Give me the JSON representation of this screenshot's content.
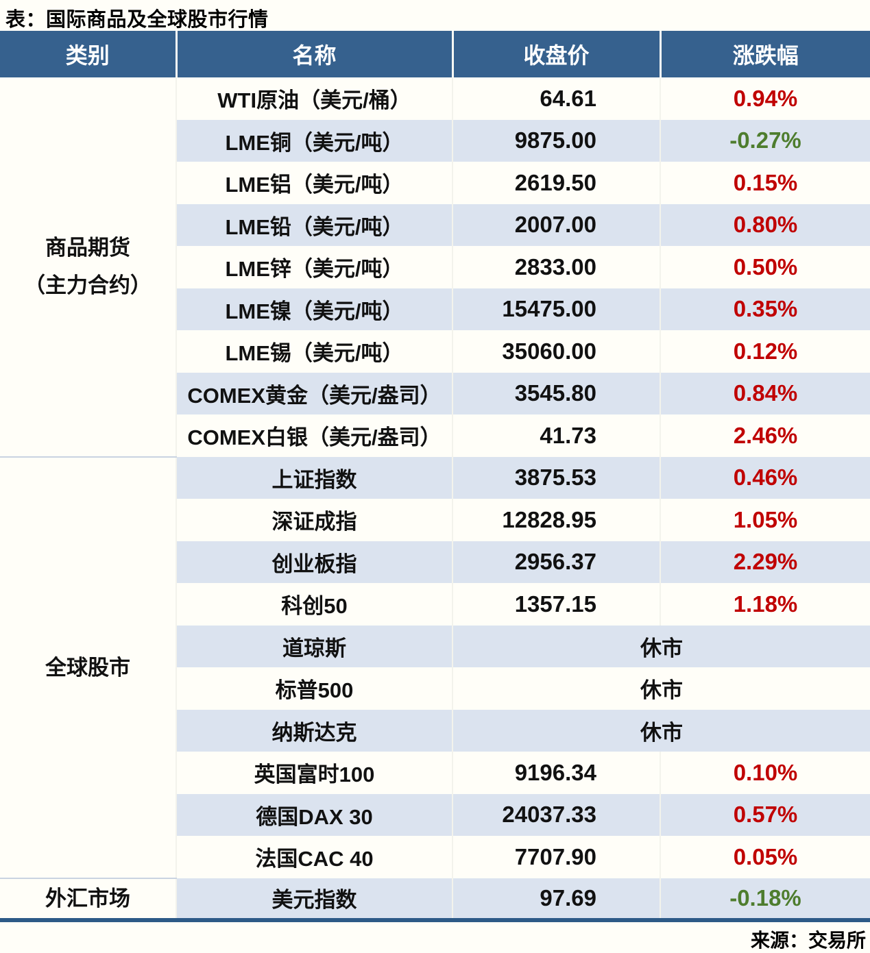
{
  "colors": {
    "header-bg": "#36618e",
    "row-bg": "#fffef8",
    "row-alt": "#dbe3ef",
    "up": "#c00000",
    "down": "#4e7d2e",
    "accent": "#2d5a87"
  },
  "chart_data": {
    "type": "table",
    "title": "表：国际商品及全球股市行情",
    "source": "来源：交易所",
    "columns": [
      "类别",
      "名称",
      "收盘价",
      "涨跌幅"
    ],
    "categories": [
      {
        "label": "商品期货（主力合约）",
        "lines": [
          "商品期货",
          "（主力合约）"
        ],
        "rowspan": 9
      },
      {
        "label": "全球股市",
        "lines": [
          "全球股市"
        ],
        "rowspan": 10
      },
      {
        "label": "外汇市场",
        "lines": [
          "外汇市场"
        ],
        "rowspan": 1
      }
    ],
    "rows": [
      {
        "name": "WTI原油（美元/桶）",
        "close": "64.61",
        "change": "0.94%",
        "direction": "up"
      },
      {
        "name": "LME铜（美元/吨）",
        "close": "9875.00",
        "change": "-0.27%",
        "direction": "down"
      },
      {
        "name": "LME铝（美元/吨）",
        "close": "2619.50",
        "change": "0.15%",
        "direction": "up"
      },
      {
        "name": "LME铅（美元/吨）",
        "close": "2007.00",
        "change": "0.80%",
        "direction": "up"
      },
      {
        "name": "LME锌（美元/吨）",
        "close": "2833.00",
        "change": "0.50%",
        "direction": "up"
      },
      {
        "name": "LME镍（美元/吨）",
        "close": "15475.00",
        "change": "0.35%",
        "direction": "up"
      },
      {
        "name": "LME锡（美元/吨）",
        "close": "35060.00",
        "change": "0.12%",
        "direction": "up"
      },
      {
        "name": "COMEX黄金（美元/盎司）",
        "close": "3545.80",
        "change": "0.84%",
        "direction": "up"
      },
      {
        "name": "COMEX白银（美元/盎司）",
        "close": "41.73",
        "change": "2.46%",
        "direction": "up"
      },
      {
        "name": "上证指数",
        "close": "3875.53",
        "change": "0.46%",
        "direction": "up"
      },
      {
        "name": "深证成指",
        "close": "12828.95",
        "change": "1.05%",
        "direction": "up"
      },
      {
        "name": "创业板指",
        "close": "2956.37",
        "change": "2.29%",
        "direction": "up"
      },
      {
        "name": "科创50",
        "close": "1357.15",
        "change": "1.18%",
        "direction": "up"
      },
      {
        "name": "道琼斯",
        "status": "休市",
        "direction": "closed"
      },
      {
        "name": "标普500",
        "status": "休市",
        "direction": "closed"
      },
      {
        "name": "纳斯达克",
        "status": "休市",
        "direction": "closed"
      },
      {
        "name": "英国富时100",
        "close": "9196.34",
        "change": "0.10%",
        "direction": "up"
      },
      {
        "name": "德国DAX 30",
        "close": "24037.33",
        "change": "0.57%",
        "direction": "up"
      },
      {
        "name": "法国CAC 40",
        "close": "7707.90",
        "change": "0.05%",
        "direction": "up"
      },
      {
        "name": "美元指数",
        "close": "97.69",
        "change": "-0.18%",
        "direction": "down"
      }
    ]
  }
}
